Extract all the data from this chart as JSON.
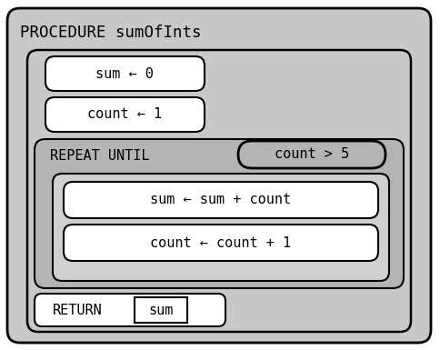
{
  "title": "PROCEDURE sumOfInts",
  "stmt1": "sum ← 0",
  "stmt2": "count ← 1",
  "repeat_label": "REPEAT UNTIL",
  "condition": "count > 5",
  "body1": "sum ← sum + count",
  "body2": "count ← count + 1",
  "return_label": "RETURN",
  "return_val": "sum",
  "bg_outer": "#c8c8c8",
  "bg_white": "#ffffff",
  "bg_repeat": "#b4b4b4",
  "bg_inner_body": "#d0d0d0",
  "border_color": "#000000",
  "text_color": "#000000",
  "font_family": "monospace",
  "font_size_title": 12.5,
  "font_size_body": 11.0,
  "fig_w": 4.84,
  "fig_h": 3.85,
  "dpi": 100
}
